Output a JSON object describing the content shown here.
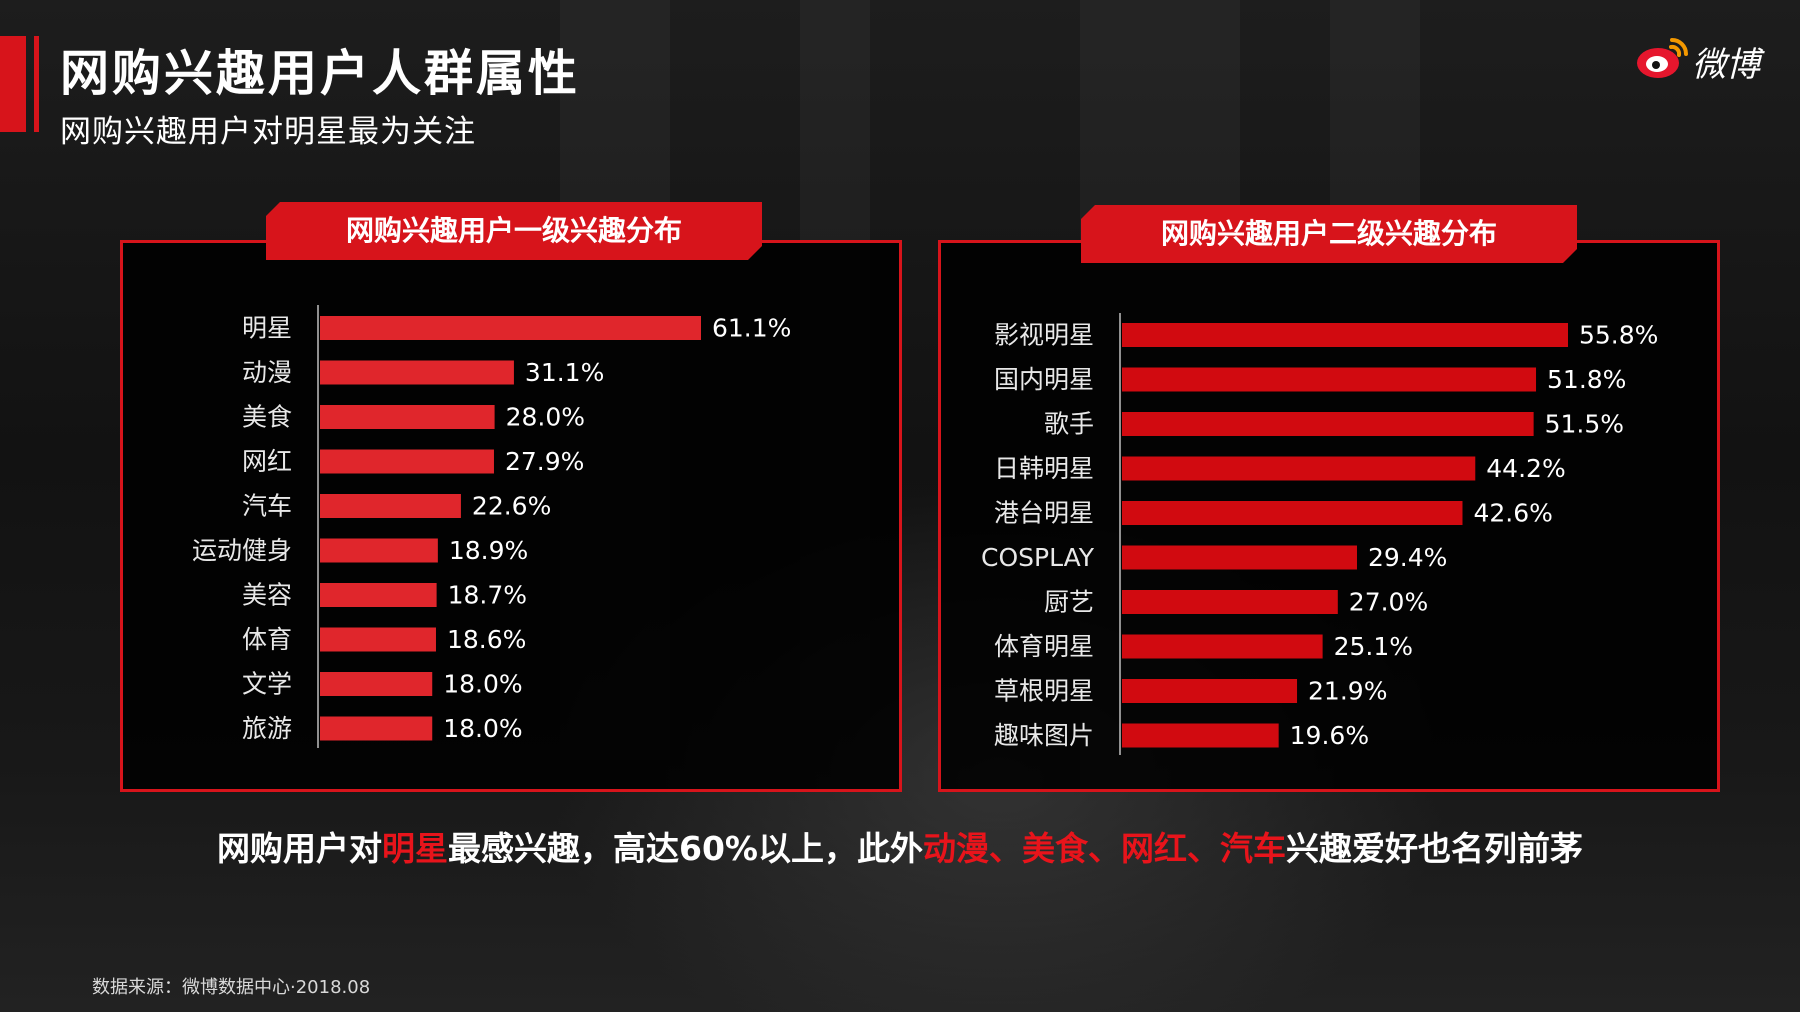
{
  "header": {
    "title": "网购兴趣用户人群属性",
    "subtitle": "网购兴趣用户对明星最为关注",
    "logo_text": "微博"
  },
  "conclusion": {
    "parts": [
      {
        "text": "网购用户对",
        "highlight": false
      },
      {
        "text": "明星",
        "highlight": true
      },
      {
        "text": "最感兴趣，高达60%以上，此外",
        "highlight": false
      },
      {
        "text": "动漫、美食、网红、汽车",
        "highlight": true
      },
      {
        "text": "兴趣爱好也名列前茅",
        "highlight": false
      }
    ]
  },
  "footer": {
    "source": "数据来源：微博数据中心·2018.08"
  },
  "colors": {
    "accent": "#d7141b",
    "bar_left": "#e0262c",
    "bar_right": "#d10a10",
    "highlight": "#e8141b"
  },
  "chart_data": [
    {
      "type": "bar",
      "orientation": "horizontal",
      "title": "网购兴趣用户一级兴趣分布",
      "categories": [
        "明星",
        "动漫",
        "美食",
        "网红",
        "汽车",
        "运动健身",
        "美容",
        "体育",
        "文学",
        "旅游"
      ],
      "values": [
        61.1,
        31.1,
        28.0,
        27.9,
        22.6,
        18.9,
        18.7,
        18.6,
        18.0,
        18.0
      ],
      "value_labels": [
        "61.1%",
        "31.1%",
        "28.0%",
        "27.9%",
        "22.6%",
        "18.9%",
        "18.7%",
        "18.6%",
        "18.0%",
        "18.0%"
      ],
      "unit": "%",
      "xlim": [
        0,
        100
      ],
      "grid": false,
      "legend": "none"
    },
    {
      "type": "bar",
      "orientation": "horizontal",
      "title": "网购兴趣用户二级兴趣分布",
      "categories": [
        "影视明星",
        "国内明星",
        "歌手",
        "日韩明星",
        "港台明星",
        "COSPLAY",
        "厨艺",
        "体育明星",
        "草根明星",
        "趣味图片"
      ],
      "values": [
        55.8,
        51.8,
        51.5,
        44.2,
        42.6,
        29.4,
        27.0,
        25.1,
        21.9,
        19.6
      ],
      "value_labels": [
        "55.8%",
        "51.8%",
        "51.5%",
        "44.2%",
        "42.6%",
        "29.4%",
        "27.0%",
        "25.1%",
        "21.9%",
        "19.6%"
      ],
      "unit": "%",
      "xlim": [
        0,
        100
      ],
      "grid": false,
      "legend": "none"
    }
  ]
}
